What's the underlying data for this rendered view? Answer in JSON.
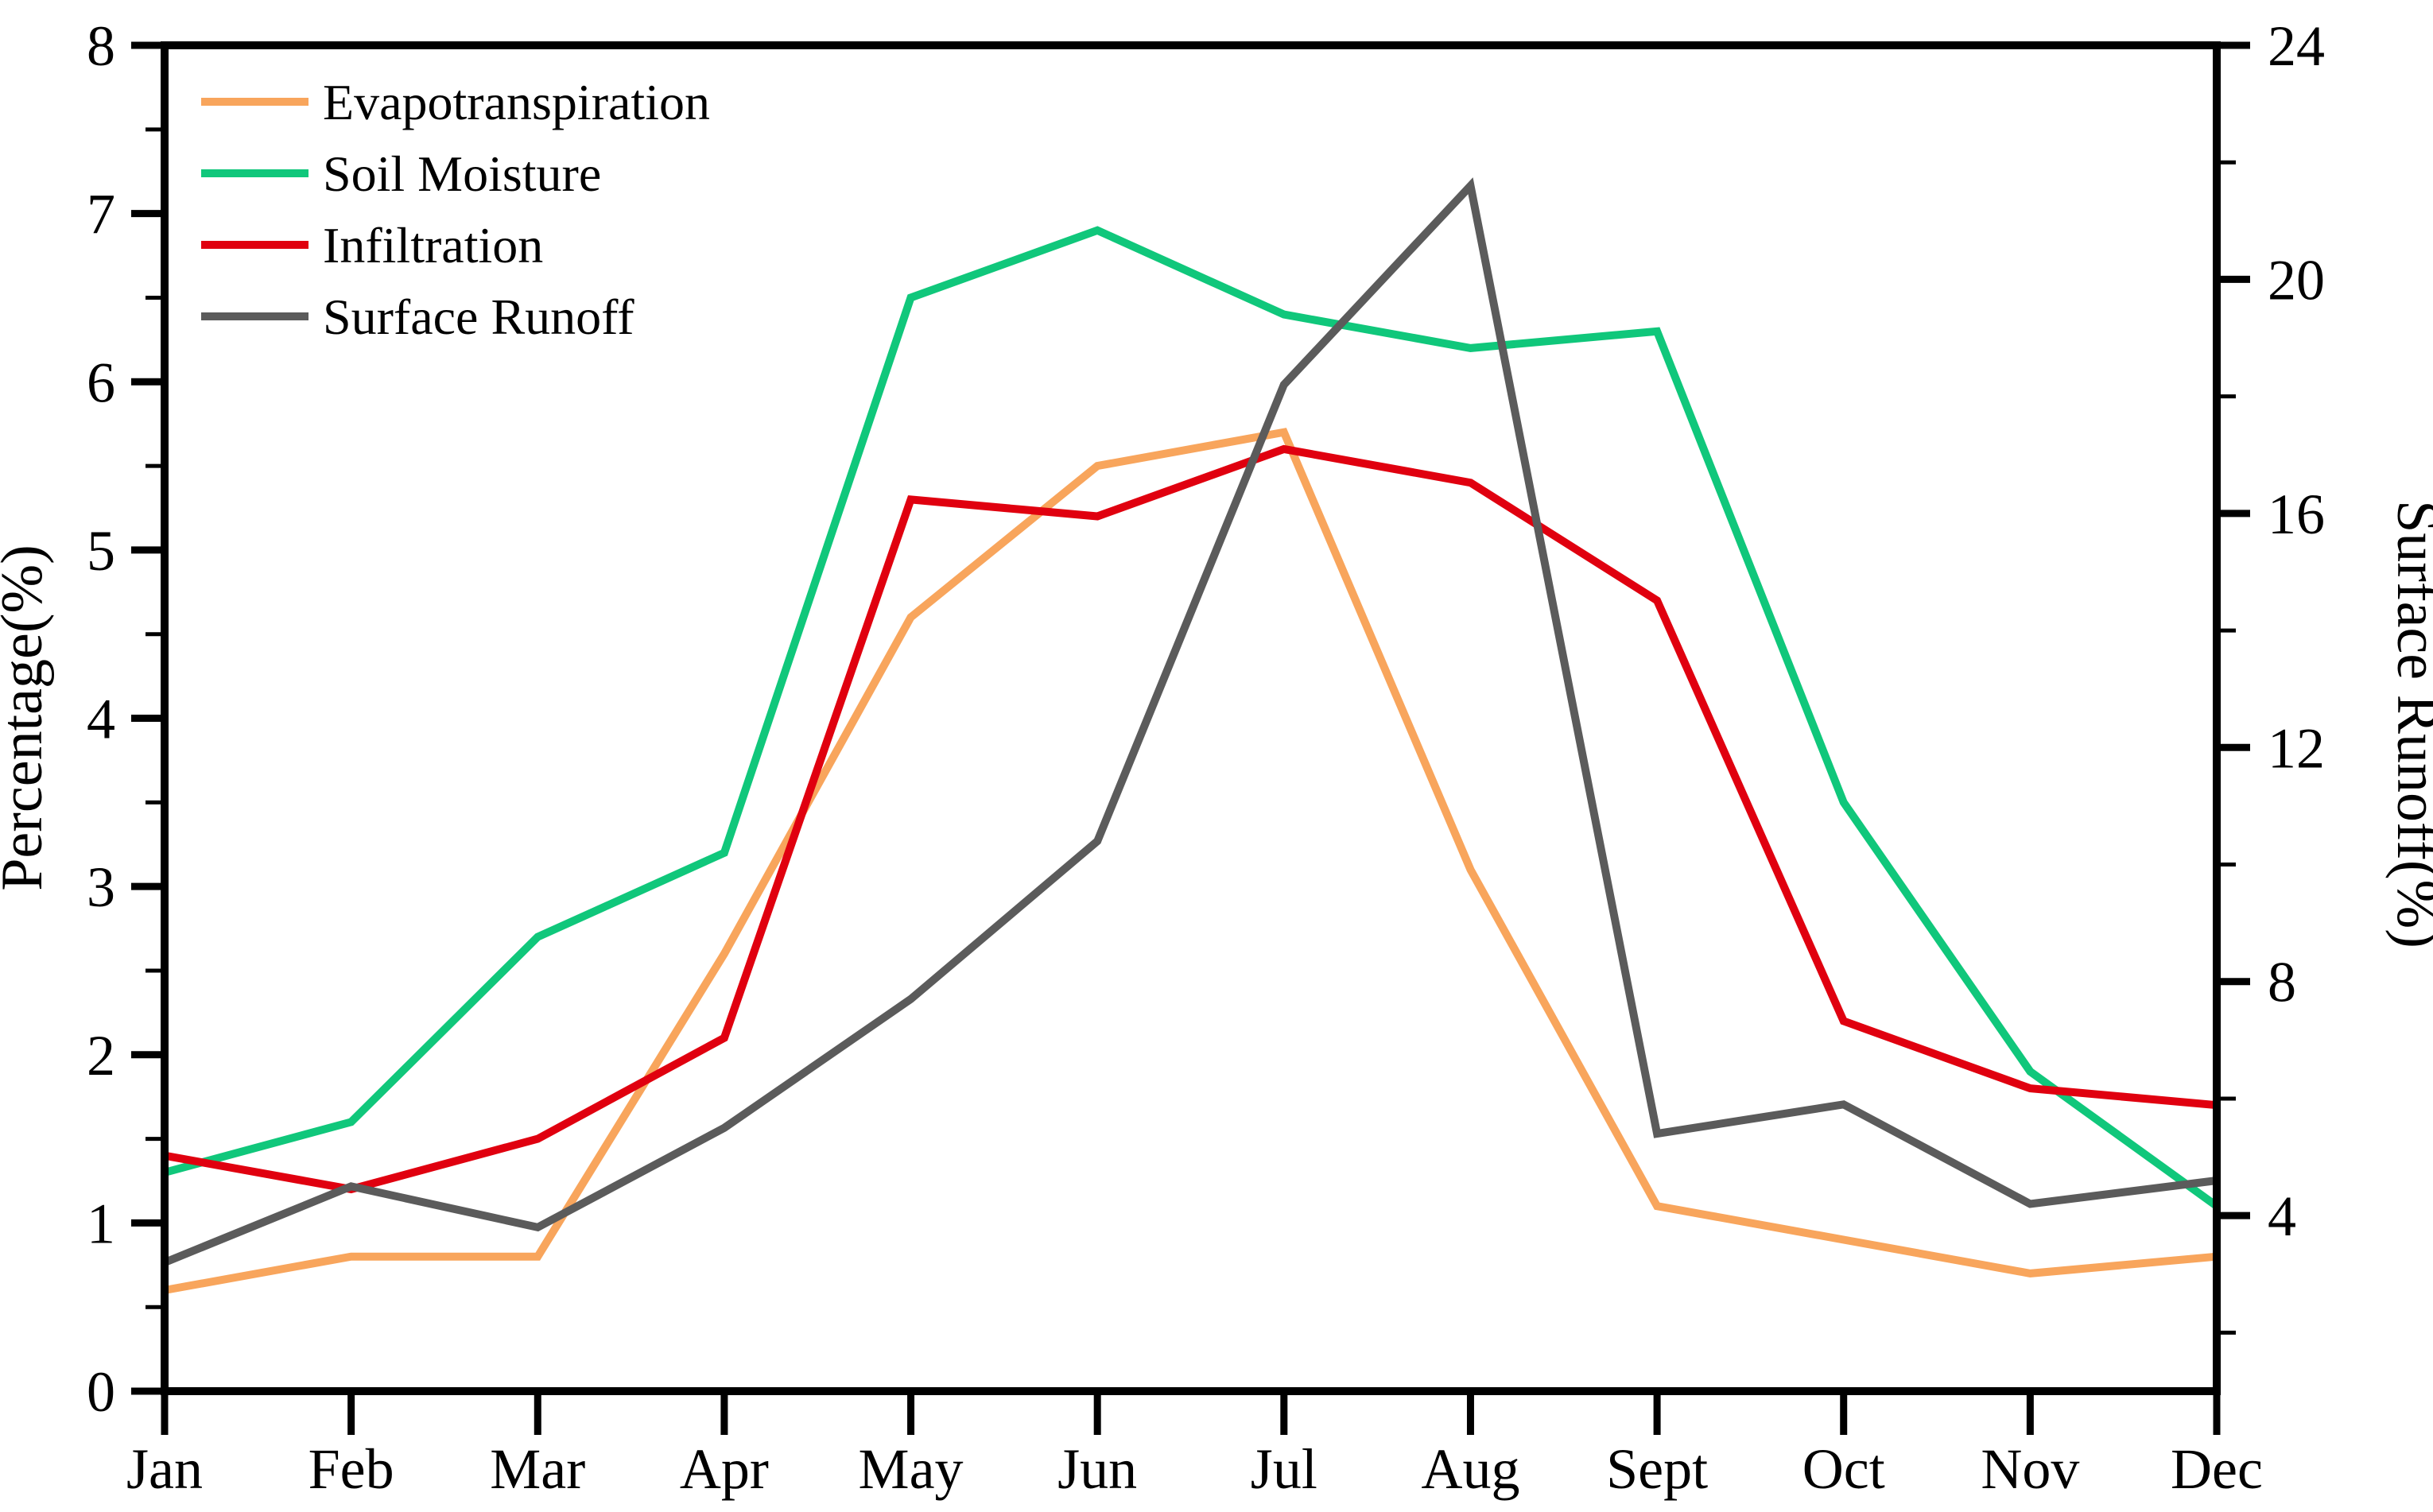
{
  "chart_data": {
    "type": "line",
    "title": "",
    "categories": [
      "Jan",
      "Feb",
      "Mar",
      "Apr",
      "May",
      "Jun",
      "Jul",
      "Aug",
      "Sept",
      "Oct",
      "Nov",
      "Dec"
    ],
    "series": [
      {
        "name": "Evapotranspiration",
        "axis": "left",
        "color": "#F8A55C",
        "values": [
          0.6,
          0.8,
          0.8,
          2.6,
          4.6,
          5.5,
          5.7,
          3.1,
          1.1,
          0.9,
          0.7,
          0.8
        ]
      },
      {
        "name": "Soil Moisture",
        "axis": "left",
        "color": "#10C77B",
        "values": [
          1.3,
          1.6,
          2.7,
          3.2,
          6.5,
          6.9,
          6.4,
          6.2,
          6.3,
          3.5,
          1.9,
          1.1
        ]
      },
      {
        "name": "Infiltration",
        "axis": "left",
        "color": "#E0000F",
        "values": [
          1.4,
          1.2,
          1.5,
          2.1,
          5.3,
          5.2,
          5.6,
          5.4,
          4.7,
          2.2,
          1.8,
          1.7
        ]
      },
      {
        "name": "Surface Runoff",
        "axis": "right",
        "color": "#5B5B5B",
        "values": [
          3.2,
          4.5,
          3.8,
          5.5,
          7.7,
          10.4,
          18.2,
          21.6,
          5.4,
          5.9,
          4.2,
          4.6
        ]
      }
    ],
    "left_axis": {
      "label": "Percentage(%)",
      "min": 0,
      "max": 8,
      "major_ticks": [
        0,
        1,
        2,
        3,
        4,
        5,
        6,
        7,
        8
      ],
      "minor_step": 0.5
    },
    "right_axis": {
      "label": "Surface Runoff(%)",
      "min": 1,
      "max": 24,
      "major_ticks": [
        4,
        8,
        12,
        16,
        20,
        24
      ],
      "minor_step": 2
    },
    "x_axis": {
      "tick_labels": [
        "Jan",
        "Feb",
        "Mar",
        "Apr",
        "May",
        "Jun",
        "Jul",
        "Aug",
        "Sept",
        "Oct",
        "Nov",
        "Dec"
      ]
    },
    "legend": {
      "position": "top-left",
      "entries": [
        "Evapotranspiration",
        "Soil Moisture",
        "Infiltration",
        "Surface Runoff"
      ]
    },
    "grid": false,
    "background_color": "#FFFFFF",
    "frame_color": "#000000"
  }
}
